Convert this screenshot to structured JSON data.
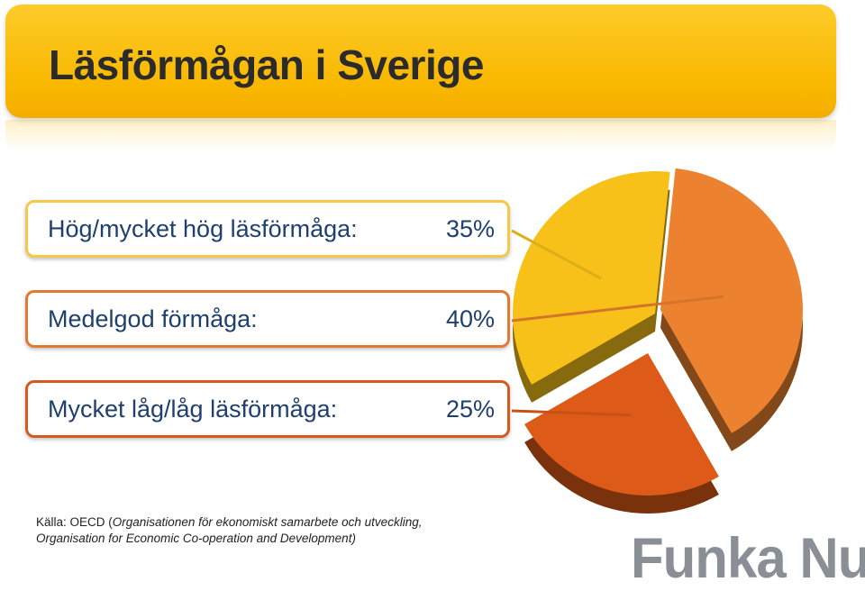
{
  "title": "Läsförmågan i Sverige",
  "chart_data": {
    "type": "pie",
    "title": "Läsförmågan i Sverige",
    "slices": [
      {
        "label": "Hög/mycket hög läsförmåga:",
        "value": 35,
        "value_label": "35%",
        "color": "#f7c11a"
      },
      {
        "label": "Medelgod förmåga:",
        "value": 40,
        "value_label": "40%",
        "color": "#ec8230"
      },
      {
        "label": "Mycket låg/låg läsförmåga:",
        "value": 25,
        "value_label": "25%",
        "color": "#dd5a18"
      }
    ]
  },
  "source": {
    "prefix": "Källa: OECD (",
    "line1_italic": "Organisationen för ekonomiskt samarbete och utveckling,",
    "line2_italic": "Organisation for Economic Co-operation and Development)"
  },
  "logo": {
    "text": "Funka Nu",
    "dot": "."
  },
  "colors": {
    "banner": "#f9b800",
    "label_text": "#1f3f6e",
    "high": "#f7c11a",
    "medium": "#ec8230",
    "low": "#dd5a18"
  }
}
